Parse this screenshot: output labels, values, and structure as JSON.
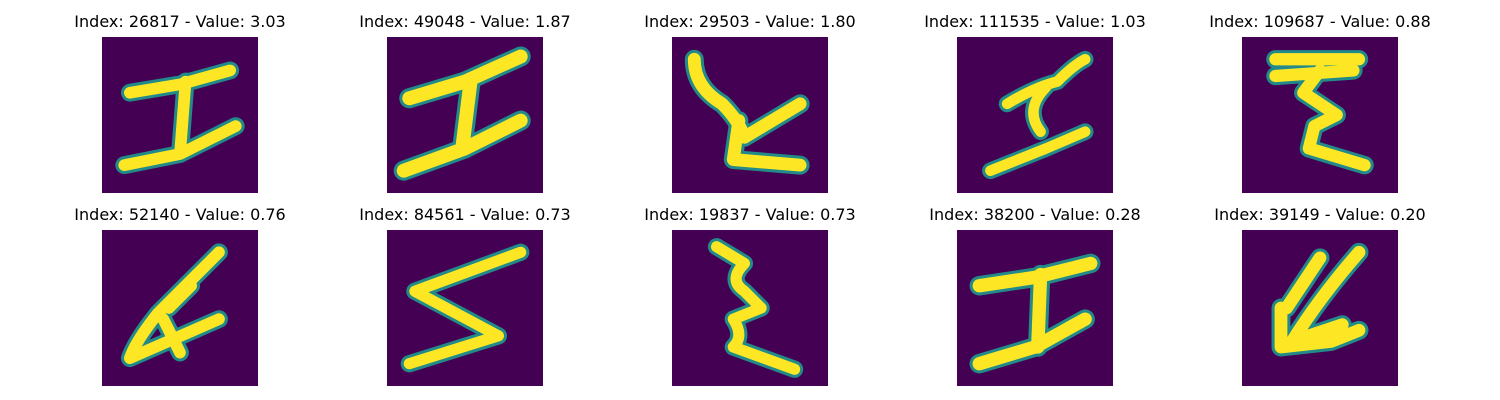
{
  "colors": {
    "background": "#440154",
    "edge": "#21918c",
    "stroke": "#fde725"
  },
  "panels": [
    {
      "title": "Index: 26817 - Value: 3.03"
    },
    {
      "title": "Index: 49048 - Value: 1.87"
    },
    {
      "title": "Index: 29503 - Value: 1.80"
    },
    {
      "title": "Index: 111535 - Value: 1.03"
    },
    {
      "title": "Index: 109687 - Value: 0.88"
    },
    {
      "title": "Index: 52140 - Value: 0.76"
    },
    {
      "title": "Index: 84561 - Value: 0.73"
    },
    {
      "title": "Index: 19837 - Value: 0.73"
    },
    {
      "title": "Index: 38200 - Value: 0.28"
    },
    {
      "title": "Index: 39149 - Value: 0.20"
    }
  ]
}
